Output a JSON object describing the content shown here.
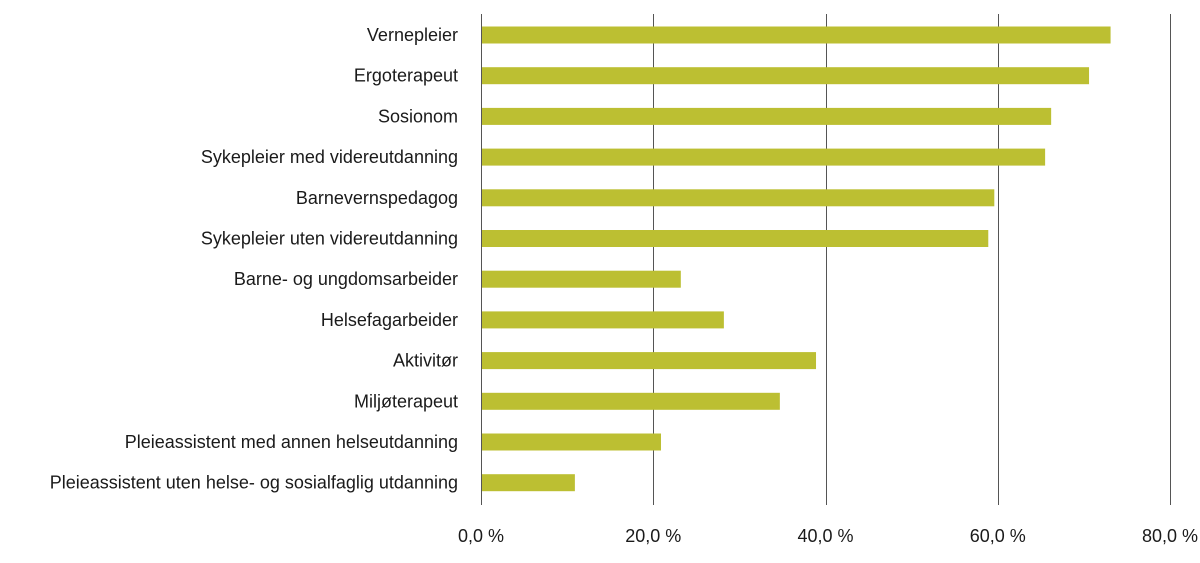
{
  "chart_data": {
    "type": "bar",
    "orientation": "horizontal",
    "title": "",
    "xlabel": "",
    "ylabel": "",
    "categories": [
      "Vernepleier",
      "Ergoterapeut",
      "Sosionom",
      "Sykepleier med videreutdanning",
      "Barnevernspedagog",
      "Sykepleier uten videreutdanning",
      "Barne- og ungdomsarbeider",
      "Helsefagarbeider",
      "Aktivitør",
      "Miljøterapeut",
      "Pleieassistent med annen helseutdanning",
      "Pleieassistent uten helse- og sosialfaglig utdanning"
    ],
    "values": [
      73.1,
      70.6,
      66.2,
      65.5,
      59.6,
      58.9,
      23.2,
      28.2,
      38.9,
      34.7,
      20.9,
      10.9
    ],
    "xlim": [
      0,
      80
    ],
    "ticks": [
      0,
      20,
      40,
      60,
      80
    ],
    "tick_labels": [
      "0,0 %",
      "20,0 %",
      "40,0 %",
      "60,0 %",
      "80,0 %"
    ],
    "grid": "vertical",
    "legend": "none",
    "bar_color": "#bcbf32"
  }
}
